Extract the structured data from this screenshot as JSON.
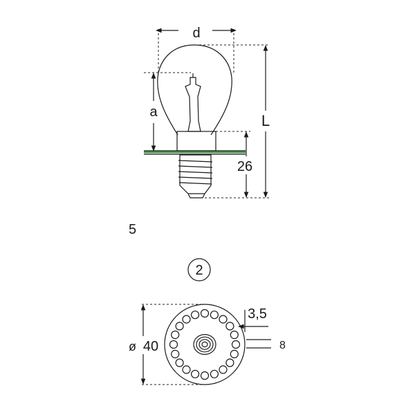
{
  "side_view": {
    "dim_d": "d",
    "dim_a": "a",
    "dim_L": "L",
    "dim_base": "26",
    "margin_digit": "5",
    "board_color": "#4f9a4f"
  },
  "detail_view": {
    "callout": "2",
    "dim_hole": "3,5",
    "dim_diameter": "40",
    "left_fragment": "ø",
    "right_fragment": "8"
  }
}
